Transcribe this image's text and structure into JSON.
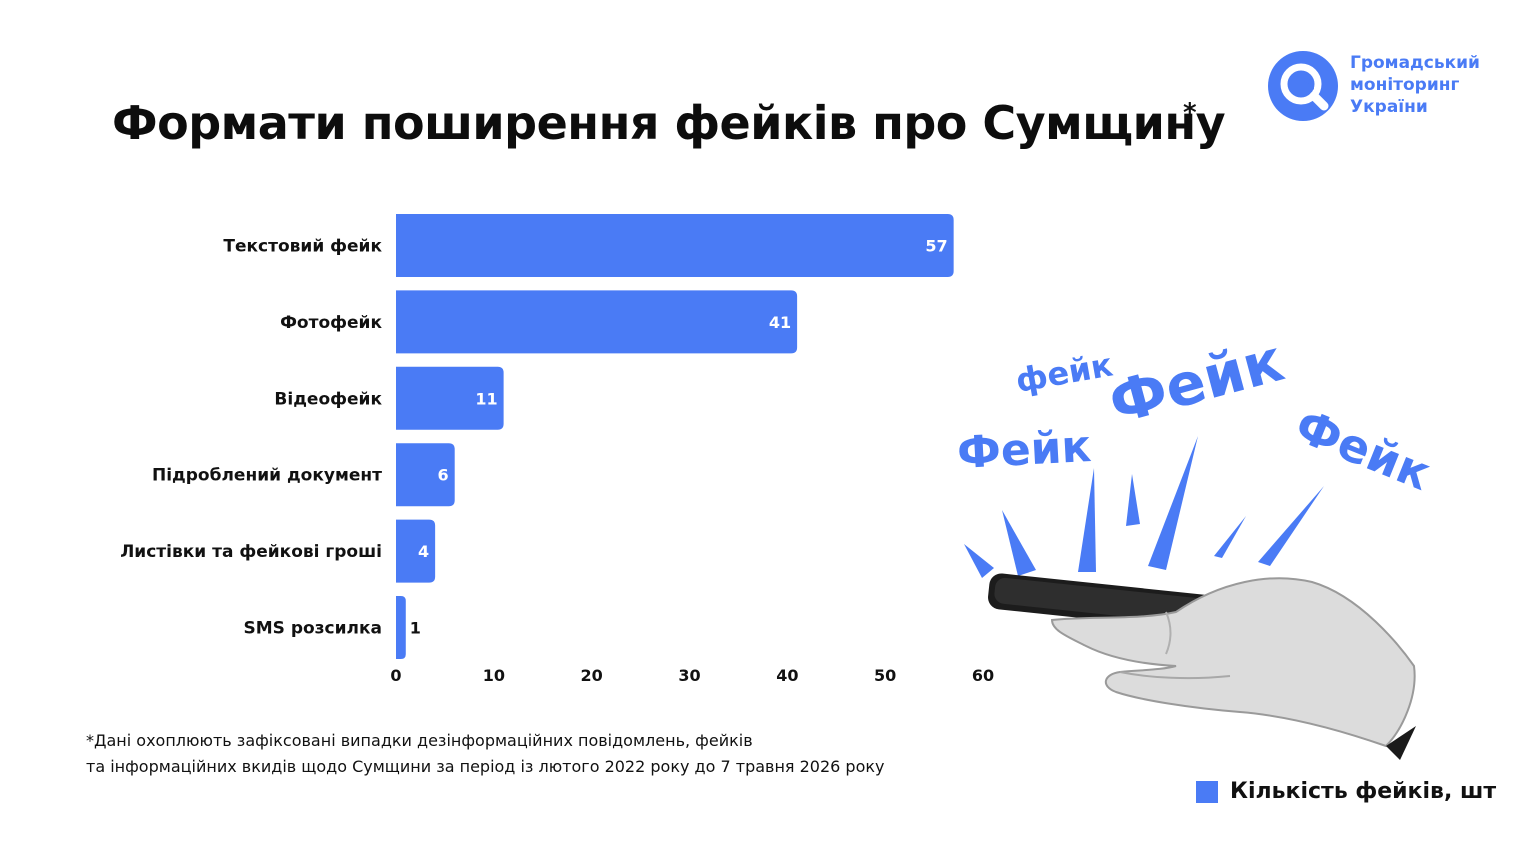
{
  "title": "Формати поширення фейків про Сумщину",
  "title_mark": "*",
  "logo": {
    "lines": [
      "Громадський",
      "моніторинг",
      "України"
    ],
    "icon": "magnifier-circle-icon",
    "color": "#4a7bf5"
  },
  "chart_data": {
    "type": "bar",
    "orientation": "horizontal",
    "categories": [
      "Текстовий фейк",
      "Фотофейк",
      "Відеофейк",
      "Підроблений документ",
      "Листівки та фейкові гроші",
      "SMS розсилка"
    ],
    "values": [
      57,
      41,
      11,
      6,
      4,
      1
    ],
    "data_labels": [
      "57",
      "41",
      "11",
      "6",
      "4",
      "1"
    ],
    "xlim": [
      0,
      60
    ],
    "x_ticks": [
      0,
      10,
      20,
      30,
      40,
      50,
      60
    ],
    "x_tick_labels": [
      "0",
      "10",
      "20",
      "30",
      "40",
      "50",
      "60"
    ],
    "grid": false,
    "legend": {
      "label": "Кількість фейків, шт",
      "position": "bottom-right"
    },
    "bar_color": "#4a7bf5"
  },
  "note": {
    "line1": "*Дані охоплюють зафіксовані випадки дезінформаційних повідомлень, фейків",
    "line2": "та інформаційних вкидів щодо Сумщини за період із лютого 2022 року до 7 травня 2026 року"
  },
  "illustration": {
    "words": [
      "фейк",
      "Фейк",
      "Фейк",
      "Фейк"
    ],
    "icon": "hand-holding-phone-illustration",
    "color": "#4a7bf5"
  }
}
